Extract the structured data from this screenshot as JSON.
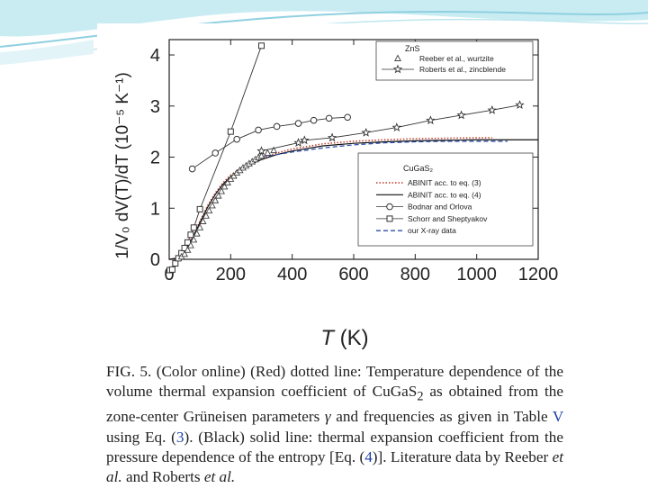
{
  "slide": {
    "accent": "#bfe6ef",
    "accent_dark": "#3fa6c4"
  },
  "chart_data": {
    "type": "line",
    "xlabel_italic": "T",
    "xlabel_unit": "(K)",
    "ylabel": "1/V₀ dV(T)/dT (10⁻⁵ K⁻¹)",
    "xlim": [
      0,
      1200
    ],
    "ylim": [
      0,
      4.3
    ],
    "xticks": [
      0,
      200,
      400,
      600,
      800,
      1000,
      1200
    ],
    "yticks": [
      0,
      1,
      2,
      3,
      4
    ],
    "xtick_labels": [
      "0",
      "200",
      "400",
      "600",
      "800",
      "1000",
      "1200"
    ],
    "ytick_labels": [
      "0",
      "1",
      "2",
      "3",
      "4"
    ],
    "legend_zns": {
      "title": "ZnS",
      "entries": [
        {
          "marker": "triangle",
          "line": "none",
          "label": "Reeber et al., wurtzite"
        },
        {
          "marker": "star",
          "line": "solid",
          "label": "Roberts et al., zincblende"
        }
      ]
    },
    "legend_cugas2": {
      "title": "CuGaS₂",
      "entries": [
        {
          "style": "dotted-red",
          "label": "ABINIT acc. to eq. (3)"
        },
        {
          "style": "solid",
          "label": "ABINIT acc. to eq. (4)"
        },
        {
          "style": "circle",
          "label": "Bodnar and Orlova"
        },
        {
          "style": "square",
          "label": "Schorr and Sheptyakov"
        },
        {
          "style": "dashed-blue",
          "label": "our X-ray data"
        }
      ]
    },
    "series": [
      {
        "name": "ABINIT acc. to eq. (3)",
        "style": "dotted-red",
        "x": [
          0,
          25,
          50,
          75,
          100,
          125,
          150,
          175,
          200,
          250,
          300,
          350,
          400,
          500,
          600,
          700,
          800,
          900,
          1000,
          1050
        ],
        "y": [
          0,
          0.02,
          0.15,
          0.42,
          0.75,
          1.05,
          1.3,
          1.5,
          1.65,
          1.85,
          1.98,
          2.08,
          2.16,
          2.26,
          2.31,
          2.34,
          2.36,
          2.37,
          2.38,
          2.38
        ]
      },
      {
        "name": "ABINIT acc. to eq. (4)",
        "style": "solid",
        "x": [
          0,
          25,
          50,
          75,
          100,
          125,
          150,
          175,
          200,
          250,
          300,
          350,
          400,
          500,
          600,
          700,
          800,
          900,
          1000,
          1100,
          1200
        ],
        "y": [
          0,
          0.02,
          0.14,
          0.4,
          0.72,
          1.02,
          1.27,
          1.47,
          1.62,
          1.82,
          1.95,
          2.05,
          2.12,
          2.22,
          2.27,
          2.3,
          2.32,
          2.33,
          2.34,
          2.34,
          2.34
        ]
      },
      {
        "name": "our X-ray data",
        "style": "dashed-blue",
        "x": [
          300,
          400,
          500,
          600,
          700,
          800,
          900,
          1000,
          1100
        ],
        "y": [
          2.0,
          2.1,
          2.18,
          2.24,
          2.28,
          2.3,
          2.31,
          2.31,
          2.31
        ]
      },
      {
        "name": "Bodnar and Orlova",
        "marker": "circle",
        "x": [
          75,
          150,
          220,
          290,
          350,
          420,
          470,
          520,
          580
        ],
        "y": [
          1.77,
          2.08,
          2.35,
          2.53,
          2.6,
          2.66,
          2.72,
          2.76,
          2.78
        ]
      },
      {
        "name": "Schorr and Sheptyakov",
        "marker": "square",
        "x": [
          2,
          10,
          20,
          30,
          40,
          50,
          60,
          70,
          80,
          100,
          200,
          300
        ],
        "y": [
          -0.45,
          -0.2,
          -0.08,
          0.02,
          0.12,
          0.22,
          0.33,
          0.48,
          0.62,
          0.98,
          2.5,
          4.18
        ]
      },
      {
        "name": "Reeber et al., wurtzite",
        "marker": "triangle",
        "x": [
          40,
          50,
          60,
          70,
          80,
          90,
          100,
          110,
          120,
          130,
          140,
          150,
          160,
          170,
          180,
          190,
          200,
          210,
          220,
          230,
          240,
          250,
          260,
          270,
          280,
          290,
          300,
          320,
          340
        ],
        "y": [
          0.05,
          0.1,
          0.18,
          0.27,
          0.38,
          0.5,
          0.62,
          0.74,
          0.85,
          0.95,
          1.05,
          1.15,
          1.24,
          1.33,
          1.42,
          1.5,
          1.57,
          1.63,
          1.69,
          1.74,
          1.79,
          1.83,
          1.87,
          1.91,
          1.95,
          1.99,
          2.02,
          2.08,
          2.13
        ]
      },
      {
        "name": "Roberts et al., zincblende",
        "marker": "star",
        "x": [
          300,
          420,
          440,
          530,
          640,
          740,
          850,
          950,
          1050,
          1140
        ],
        "y": [
          2.12,
          2.28,
          2.33,
          2.38,
          2.48,
          2.58,
          2.72,
          2.82,
          2.92,
          3.02
        ]
      }
    ]
  },
  "caption": {
    "fig": "FIG. 5.",
    "part1": " (Color online) (Red) dotted line: Temperature dependence of the volume thermal expansion coefficient of CuGaS",
    "sub2": "2",
    "part2": " as obtained from the zone-center Grüneisen parameters ",
    "gamma": "γ",
    "part3": " and frequencies as given in Table ",
    "table_ref": "V",
    "part4": " using Eq. (",
    "eq3_ref": "3",
    "part5": "). (Black) solid line: thermal expansion coefficient from the pressure dependence of the entropy [Eq. (",
    "eq4_ref": "4",
    "part6": ")]. Literature data by Reeber ",
    "etal1": "et al.",
    "part7": " and Roberts ",
    "etal2": "et al."
  }
}
